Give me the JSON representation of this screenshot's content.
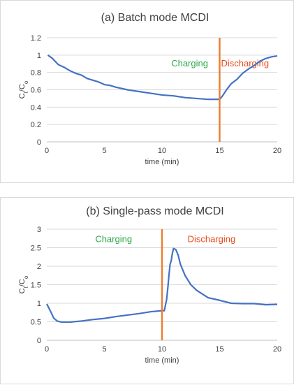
{
  "chart_data": [
    {
      "type": "line",
      "title": "(a) Batch mode MCDI",
      "xlabel": "time (min)",
      "ylabel_main": "C",
      "ylabel_sub1": "t",
      "ylabel_mid": "/C",
      "ylabel_sub2": "o",
      "xlim": [
        0,
        20
      ],
      "ylim": [
        0,
        1.2
      ],
      "xticks": [
        0,
        5,
        10,
        15,
        20
      ],
      "yticks": [
        0,
        0.2,
        0.4,
        0.6,
        0.8,
        1,
        1.2
      ],
      "ytick_labels": [
        "0",
        "0.2",
        "0.4",
        "0.6",
        "0.8",
        "1",
        "1.2"
      ],
      "grid": true,
      "vline_x": 15,
      "annotations": [
        {
          "text": "Charging",
          "x": 12.4,
          "y": 0.91,
          "color": "#2ea84a"
        },
        {
          "text": "Discharging",
          "x": 17.2,
          "y": 0.91,
          "color": "#e74c1c"
        }
      ],
      "series": [
        {
          "color": "#4472c4",
          "x": [
            0.1,
            0.5,
            1.0,
            1.5,
            2.0,
            2.5,
            3.0,
            3.5,
            4.0,
            4.5,
            5.0,
            5.5,
            6.0,
            7.0,
            8.0,
            9.0,
            10.0,
            11.0,
            12.0,
            13.0,
            14.0,
            14.6,
            14.8,
            15.0,
            15.2,
            15.4,
            15.6,
            16.0,
            16.5,
            17.0,
            17.5,
            18.0,
            18.5,
            19.0,
            19.5,
            20.0
          ],
          "y": [
            1.0,
            0.96,
            0.89,
            0.86,
            0.82,
            0.79,
            0.77,
            0.73,
            0.71,
            0.69,
            0.66,
            0.65,
            0.63,
            0.6,
            0.58,
            0.56,
            0.54,
            0.53,
            0.51,
            0.5,
            0.49,
            0.49,
            0.49,
            0.49,
            0.52,
            0.56,
            0.6,
            0.67,
            0.72,
            0.79,
            0.84,
            0.88,
            0.93,
            0.96,
            0.98,
            0.99
          ]
        }
      ]
    },
    {
      "type": "line",
      "title": "(b) Single-pass mode MCDI",
      "xlabel": "time (min)",
      "ylabel_main": "C",
      "ylabel_sub1": "t",
      "ylabel_mid": "/C",
      "ylabel_sub2": "o",
      "xlim": [
        0,
        20
      ],
      "ylim": [
        0,
        3
      ],
      "xticks": [
        0,
        5,
        10,
        15,
        20
      ],
      "yticks": [
        0,
        0.5,
        1,
        1.5,
        2,
        2.5,
        3
      ],
      "ytick_labels": [
        "0",
        "0.5",
        "1",
        "1.5",
        "2",
        "2.5",
        "3"
      ],
      "grid": true,
      "vline_x": 10,
      "annotations": [
        {
          "text": "Charging",
          "x": 5.8,
          "y": 2.75,
          "color": "#2ea84a"
        },
        {
          "text": "Discharging",
          "x": 14.3,
          "y": 2.75,
          "color": "#e74c1c"
        }
      ],
      "series": [
        {
          "color": "#4472c4",
          "x": [
            0,
            0.3,
            0.6,
            0.9,
            1.3,
            2.0,
            3.0,
            4.0,
            5.0,
            6.0,
            7.0,
            8.0,
            9.0,
            10.0,
            10.2,
            10.4,
            10.5,
            10.6,
            10.7,
            10.8,
            10.9,
            11.0,
            11.2,
            11.4,
            11.6,
            11.8,
            12.0,
            12.5,
            13.0,
            14.0,
            15.0,
            16.0,
            17.0,
            18.0,
            19.0,
            20.0
          ],
          "y": [
            0.98,
            0.8,
            0.6,
            0.52,
            0.49,
            0.49,
            0.52,
            0.56,
            0.59,
            0.64,
            0.68,
            0.72,
            0.77,
            0.8,
            0.8,
            1.1,
            1.4,
            1.75,
            2.05,
            2.15,
            2.35,
            2.48,
            2.45,
            2.3,
            2.05,
            1.9,
            1.75,
            1.5,
            1.35,
            1.15,
            1.08,
            1.0,
            0.99,
            0.99,
            0.96,
            0.97
          ]
        }
      ]
    }
  ]
}
